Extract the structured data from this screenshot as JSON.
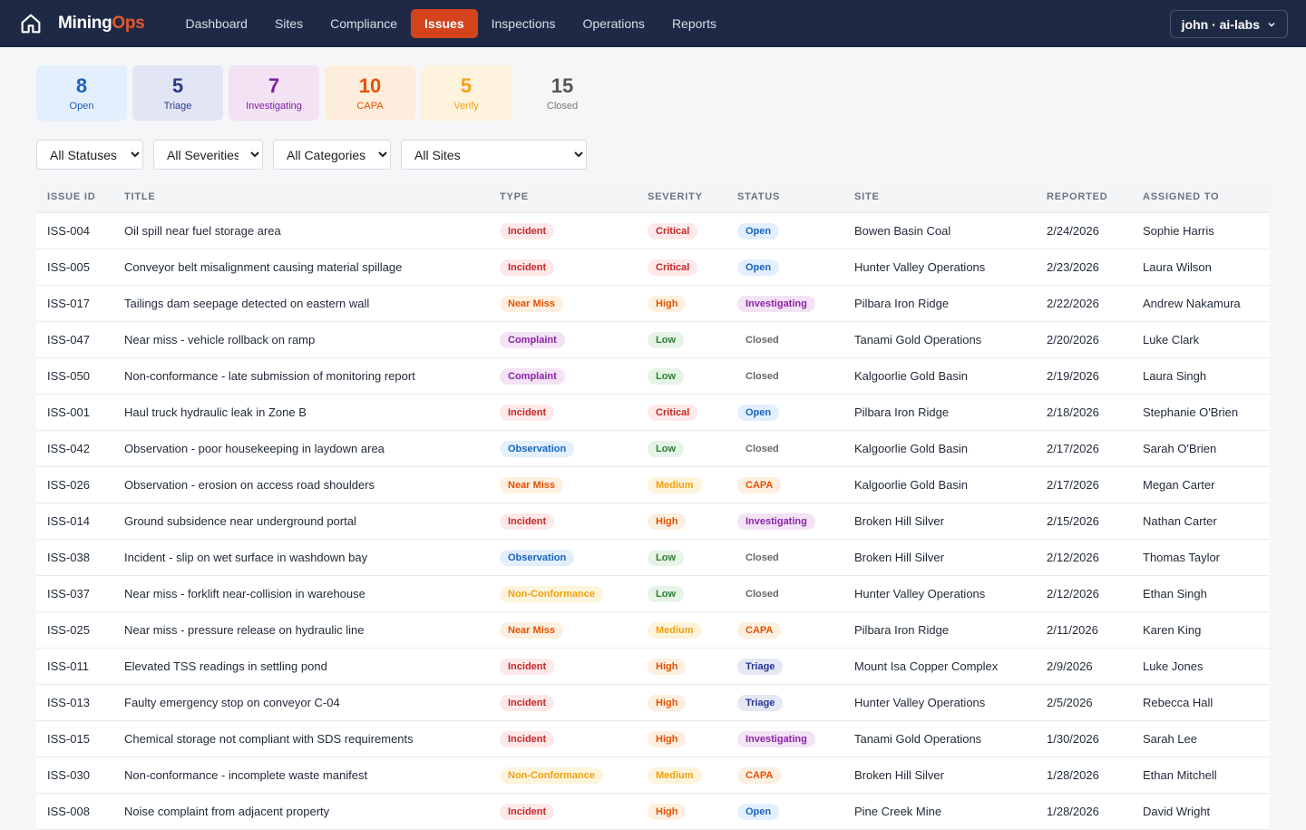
{
  "nav": {
    "brand": {
      "first": "Mining",
      "second": "Ops"
    },
    "items": [
      "Dashboard",
      "Sites",
      "Compliance",
      "Issues",
      "Inspections",
      "Operations",
      "Reports"
    ],
    "active": 3,
    "user": "john · ai-labs"
  },
  "stats": [
    {
      "value": 8,
      "label": "Open",
      "tone": "blue"
    },
    {
      "value": 5,
      "label": "Triage",
      "tone": "indigo"
    },
    {
      "value": 7,
      "label": "Investigating",
      "tone": "purple"
    },
    {
      "value": 10,
      "label": "CAPA",
      "tone": "orange"
    },
    {
      "value": 5,
      "label": "Verify",
      "tone": "yellow"
    },
    {
      "value": 15,
      "label": "Closed",
      "tone": "gray"
    }
  ],
  "filters": [
    "All Statuses",
    "All Severities",
    "All Categories",
    "All Sites"
  ],
  "table": {
    "headers": [
      "ISSUE ID",
      "TITLE",
      "TYPE",
      "SEVERITY",
      "STATUS",
      "SITE",
      "REPORTED",
      "ASSIGNED TO"
    ],
    "rows": [
      [
        "ISS-004",
        "Oil spill near fuel storage area",
        {
          "label": "Incident",
          "tone": "red"
        },
        {
          "label": "Critical",
          "tone": "red"
        },
        {
          "label": "Open",
          "tone": "blue"
        },
        "Bowen Basin Coal",
        "2/24/2026",
        "Sophie Harris"
      ],
      [
        "ISS-005",
        "Conveyor belt misalignment causing material spillage",
        {
          "label": "Incident",
          "tone": "red"
        },
        {
          "label": "Critical",
          "tone": "red"
        },
        {
          "label": "Open",
          "tone": "blue"
        },
        "Hunter Valley Operations",
        "2/23/2026",
        "Laura Wilson"
      ],
      [
        "ISS-017",
        "Tailings dam seepage detected on eastern wall",
        {
          "label": "Near Miss",
          "tone": "orange"
        },
        {
          "label": "High",
          "tone": "orange"
        },
        {
          "label": "Investigating",
          "tone": "purple"
        },
        "Pilbara Iron Ridge",
        "2/22/2026",
        "Andrew Nakamura"
      ],
      [
        "ISS-047",
        "Near miss - vehicle rollback on ramp",
        {
          "label": "Complaint",
          "tone": "purple"
        },
        {
          "label": "Low",
          "tone": "green"
        },
        {
          "label": "Closed",
          "tone": "gray"
        },
        "Tanami Gold Operations",
        "2/20/2026",
        "Luke Clark"
      ],
      [
        "ISS-050",
        "Non-conformance - late submission of monitoring report",
        {
          "label": "Complaint",
          "tone": "purple"
        },
        {
          "label": "Low",
          "tone": "green"
        },
        {
          "label": "Closed",
          "tone": "gray"
        },
        "Kalgoorlie Gold Basin",
        "2/19/2026",
        "Laura Singh"
      ],
      [
        "ISS-001",
        "Haul truck hydraulic leak in Zone B",
        {
          "label": "Incident",
          "tone": "red"
        },
        {
          "label": "Critical",
          "tone": "red"
        },
        {
          "label": "Open",
          "tone": "blue"
        },
        "Pilbara Iron Ridge",
        "2/18/2026",
        "Stephanie O'Brien"
      ],
      [
        "ISS-042",
        "Observation - poor housekeeping in laydown area",
        {
          "label": "Observation",
          "tone": "blue"
        },
        {
          "label": "Low",
          "tone": "green"
        },
        {
          "label": "Closed",
          "tone": "gray"
        },
        "Kalgoorlie Gold Basin",
        "2/17/2026",
        "Sarah O'Brien"
      ],
      [
        "ISS-026",
        "Observation - erosion on access road shoulders",
        {
          "label": "Near Miss",
          "tone": "orange"
        },
        {
          "label": "Medium",
          "tone": "yellow"
        },
        {
          "label": "CAPA",
          "tone": "orange"
        },
        "Kalgoorlie Gold Basin",
        "2/17/2026",
        "Megan Carter"
      ],
      [
        "ISS-014",
        "Ground subsidence near underground portal",
        {
          "label": "Incident",
          "tone": "red"
        },
        {
          "label": "High",
          "tone": "orange"
        },
        {
          "label": "Investigating",
          "tone": "purple"
        },
        "Broken Hill Silver",
        "2/15/2026",
        "Nathan Carter"
      ],
      [
        "ISS-038",
        "Incident - slip on wet surface in washdown bay",
        {
          "label": "Observation",
          "tone": "blue"
        },
        {
          "label": "Low",
          "tone": "green"
        },
        {
          "label": "Closed",
          "tone": "gray"
        },
        "Broken Hill Silver",
        "2/12/2026",
        "Thomas Taylor"
      ],
      [
        "ISS-037",
        "Near miss - forklift near-collision in warehouse",
        {
          "label": "Non-Conformance",
          "tone": "yellow"
        },
        {
          "label": "Low",
          "tone": "green"
        },
        {
          "label": "Closed",
          "tone": "gray"
        },
        "Hunter Valley Operations",
        "2/12/2026",
        "Ethan Singh"
      ],
      [
        "ISS-025",
        "Near miss - pressure release on hydraulic line",
        {
          "label": "Near Miss",
          "tone": "orange"
        },
        {
          "label": "Medium",
          "tone": "yellow"
        },
        {
          "label": "CAPA",
          "tone": "orange"
        },
        "Pilbara Iron Ridge",
        "2/11/2026",
        "Karen King"
      ],
      [
        "ISS-011",
        "Elevated TSS readings in settling pond",
        {
          "label": "Incident",
          "tone": "red"
        },
        {
          "label": "High",
          "tone": "orange"
        },
        {
          "label": "Triage",
          "tone": "indigo"
        },
        "Mount Isa Copper Complex",
        "2/9/2026",
        "Luke Jones"
      ],
      [
        "ISS-013",
        "Faulty emergency stop on conveyor C-04",
        {
          "label": "Incident",
          "tone": "red"
        },
        {
          "label": "High",
          "tone": "orange"
        },
        {
          "label": "Triage",
          "tone": "indigo"
        },
        "Hunter Valley Operations",
        "2/5/2026",
        "Rebecca Hall"
      ],
      [
        "ISS-015",
        "Chemical storage not compliant with SDS requirements",
        {
          "label": "Incident",
          "tone": "red"
        },
        {
          "label": "High",
          "tone": "orange"
        },
        {
          "label": "Investigating",
          "tone": "purple"
        },
        "Tanami Gold Operations",
        "1/30/2026",
        "Sarah Lee"
      ],
      [
        "ISS-030",
        "Non-conformance - incomplete waste manifest",
        {
          "label": "Non-Conformance",
          "tone": "yellow"
        },
        {
          "label": "Medium",
          "tone": "yellow"
        },
        {
          "label": "CAPA",
          "tone": "orange"
        },
        "Broken Hill Silver",
        "1/28/2026",
        "Ethan Mitchell"
      ],
      [
        "ISS-008",
        "Noise complaint from adjacent property",
        {
          "label": "Incident",
          "tone": "red"
        },
        {
          "label": "High",
          "tone": "orange"
        },
        {
          "label": "Open",
          "tone": "blue"
        },
        "Pine Creek Mine",
        "1/28/2026",
        "David Wright"
      ]
    ]
  }
}
